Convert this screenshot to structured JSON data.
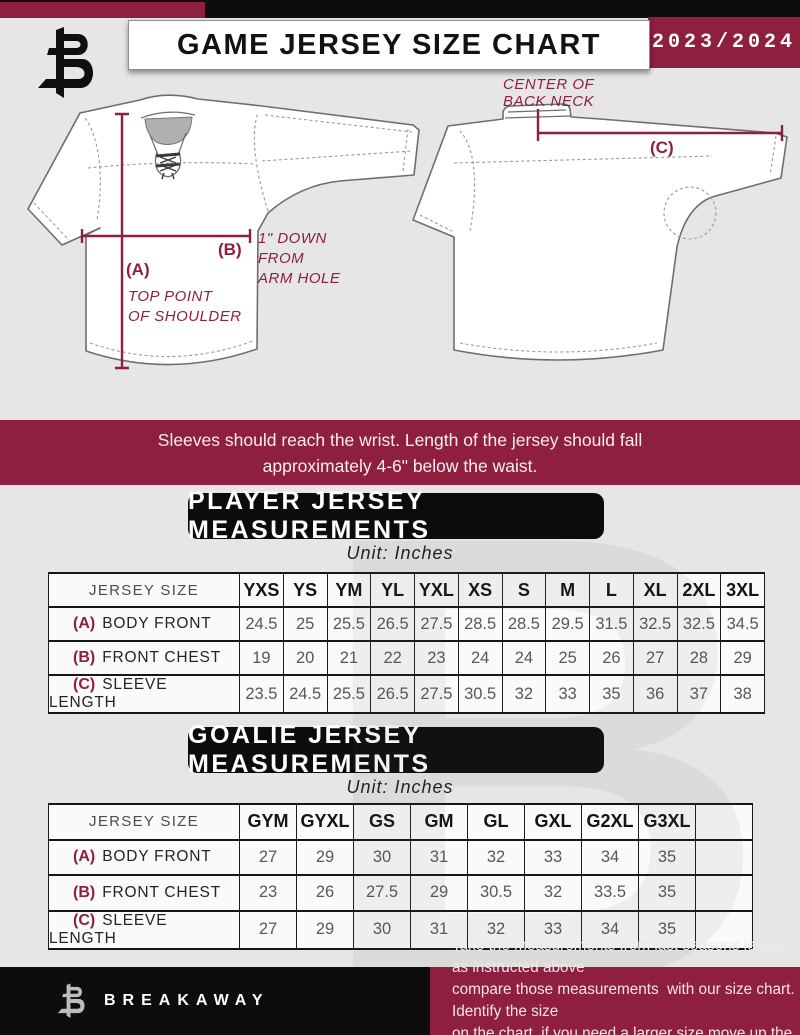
{
  "header": {
    "title": "GAME JERSEY SIZE CHART",
    "season": "2023/2024",
    "logo": "breakaway-b-logo"
  },
  "diagram": {
    "front": {
      "a_tag": "(A)",
      "a_note_line1": "TOP POINT",
      "a_note_line2": "OF SHOULDER",
      "b_tag": "(B)",
      "b_note_line1": "1\" DOWN",
      "b_note_line2": "FROM",
      "b_note_line3": "ARM HOLE"
    },
    "back": {
      "c_tag": "(C)",
      "c_note_line1": "CENTER OF",
      "c_note_line2": "BACK NECK"
    }
  },
  "notice_banner": {
    "line1": "Sleeves should reach the wrist. Length of the jersey should fall",
    "line2": "approximately 4-6\" below the waist."
  },
  "player_section": {
    "title": "PLAYER JERSEY MEASUREMENTS",
    "unit_label": "Unit: Inches",
    "table": {
      "header_label": "JERSEY SIZE",
      "columns": [
        "YXS",
        "YS",
        "YM",
        "YL",
        "YXL",
        "XS",
        "S",
        "M",
        "L",
        "XL",
        "2XL",
        "3XL"
      ],
      "rows": [
        {
          "tag": "(A)",
          "label": "BODY FRONT",
          "values": [
            "24.5",
            "25",
            "25.5",
            "26.5",
            "27.5",
            "28.5",
            "28.5",
            "29.5",
            "31.5",
            "32.5",
            "32.5",
            "34.5"
          ]
        },
        {
          "tag": "(B)",
          "label": "FRONT CHEST",
          "values": [
            "19",
            "20",
            "21",
            "22",
            "23",
            "24",
            "24",
            "25",
            "26",
            "27",
            "28",
            "29"
          ]
        },
        {
          "tag": "(C)",
          "label": "SLEEVE LENGTH",
          "values": [
            "23.5",
            "24.5",
            "25.5",
            "26.5",
            "27.5",
            "30.5",
            "32",
            "33",
            "35",
            "36",
            "37",
            "38"
          ]
        }
      ]
    }
  },
  "goalie_section": {
    "title": "GOALIE JERSEY MEASUREMENTS",
    "unit_label": "Unit: Inches",
    "table": {
      "header_label": "JERSEY SIZE",
      "columns": [
        "GYM",
        "GYXL",
        "GS",
        "GM",
        "GL",
        "GXL",
        "G2XL",
        "G3XL",
        ""
      ],
      "rows": [
        {
          "tag": "(A)",
          "label": "BODY FRONT",
          "values": [
            "27",
            "29",
            "30",
            "31",
            "32",
            "33",
            "34",
            "35",
            ""
          ]
        },
        {
          "tag": "(B)",
          "label": "FRONT CHEST",
          "values": [
            "23",
            "26",
            "27.5",
            "29",
            "30.5",
            "32",
            "33.5",
            "35",
            ""
          ]
        },
        {
          "tag": "(C)",
          "label": "SLEEVE LENGTH",
          "values": [
            "27",
            "29",
            "30",
            "31",
            "32",
            "33",
            "34",
            "35",
            ""
          ]
        }
      ]
    }
  },
  "footer": {
    "brand": "BREAKAWAY",
    "note_line1": "Take the measurements from last seasons jersey as instructed above",
    "note_line2": "compare those measurements  with our size chart. Identify the size",
    "note_line3": "on the chart, if you need a larger size move up the scale on the chart"
  },
  "watermark_letter": "B",
  "colors": {
    "maroon": "#8e1f3e",
    "black": "#0d0d0d",
    "background": "#e7e6e6",
    "table_value_gray": "#585858"
  }
}
